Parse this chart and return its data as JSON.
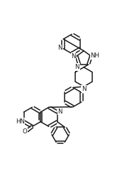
{
  "bg_color": "#ffffff",
  "line_color": "#1a1a1a",
  "lw": 1.1,
  "figsize": [
    1.79,
    2.58
  ],
  "dpi": 100,
  "xlim": [
    0.0,
    1.0
  ],
  "ylim": [
    0.0,
    1.0
  ],
  "labels": {
    "py_N": "N",
    "tri_N1": "N",
    "tri_N2": "N",
    "tri_NH": "NH",
    "pip_N": "N",
    "naph_N": "N",
    "naph_HN": "HN",
    "naph_O": "O"
  },
  "font_size": 6.2
}
